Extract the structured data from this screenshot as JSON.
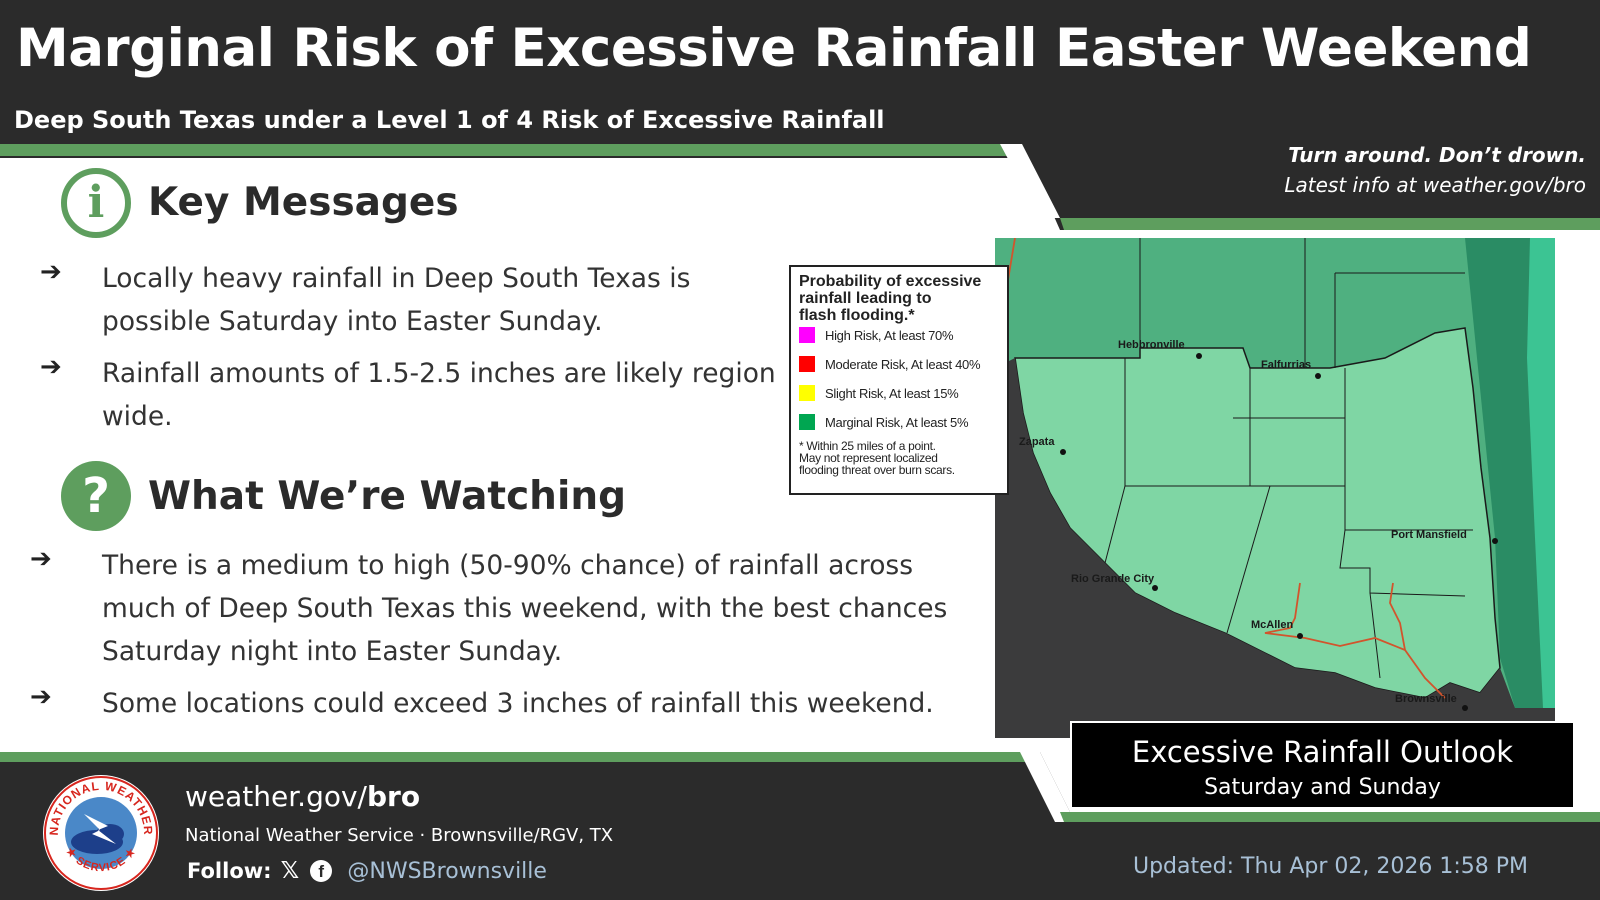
{
  "header": {
    "title": "Marginal Risk of Excessive Rainfall Easter Weekend",
    "subtitle": "Deep South Texas under a Level 1 of 4 Risk of Excessive Rainfall",
    "tagline_bold": "Turn around. Don’t drown.",
    "tagline_info": "Latest info at weather.gov/bro"
  },
  "key_messages": {
    "icon": "info-icon",
    "heading": "Key Messages",
    "bullets": [
      {
        "line1": "Locally heavy rainfall in Deep South Texas is",
        "line2": "possible Saturday into Easter Sunday."
      },
      {
        "line1": "Rainfall amounts of 1.5-2.5 inches are likely region",
        "line2": "wide."
      }
    ]
  },
  "watching": {
    "icon": "question-icon",
    "heading": "What We’re Watching",
    "bullets": [
      {
        "line1": "There is a medium to high (50-90% chance) of rainfall across",
        "line2": "much of Deep South Texas this weekend, with the best chances",
        "line3": "Saturday night into Easter Sunday."
      },
      {
        "line1": "Some locations could exceed 3 inches of rainfall this weekend."
      }
    ]
  },
  "legend": {
    "title_line1": "Probability of excessive",
    "title_line2": "rainfall leading to",
    "title_line3": "flash flooding.*",
    "items": [
      {
        "label": "High Risk, At least 70%",
        "color": "#ff00ff"
      },
      {
        "label": "Moderate Risk, At least 40%",
        "color": "#ff0000"
      },
      {
        "label": "Slight Risk, At least 15%",
        "color": "#ffff00"
      },
      {
        "label": "Marginal Risk, At least 5%",
        "color": "#00a651"
      }
    ],
    "note_line1": "* Within 25 miles of a point.",
    "note_line2": "May not represent localized",
    "note_line3": "flooding threat over burn scars."
  },
  "map": {
    "cities": {
      "hebbronville": "Hebbronville",
      "falfurrias": "Falfurrias",
      "zapata": "Zapata",
      "port_mansfield": "Port Mansfield",
      "rio_grande_city": "Rio Grande City",
      "mcallen": "McAllen",
      "brownsville": "Brownsville"
    },
    "colors": {
      "marginal_risk": "#7fd6a4",
      "outer_region": "#4fb080",
      "mexico": "#3b3b3c",
      "gulf": "#2a8c64"
    }
  },
  "outlook": {
    "title": "Excessive Rainfall Outlook",
    "subtitle": "Saturday and Sunday"
  },
  "footer": {
    "logo_icon": "nws-logo-icon",
    "site_prefix": "weather.gov/",
    "site_bold": "bro",
    "office": "National Weather Service · Brownsville/RGV, TX",
    "follow_label": "Follow:",
    "x_icon": "x-icon",
    "facebook_icon": "facebook-icon",
    "handle": "@NWSBrownsville",
    "updated": "Updated: Thu Apr 02, 2026 1:58 PM"
  }
}
